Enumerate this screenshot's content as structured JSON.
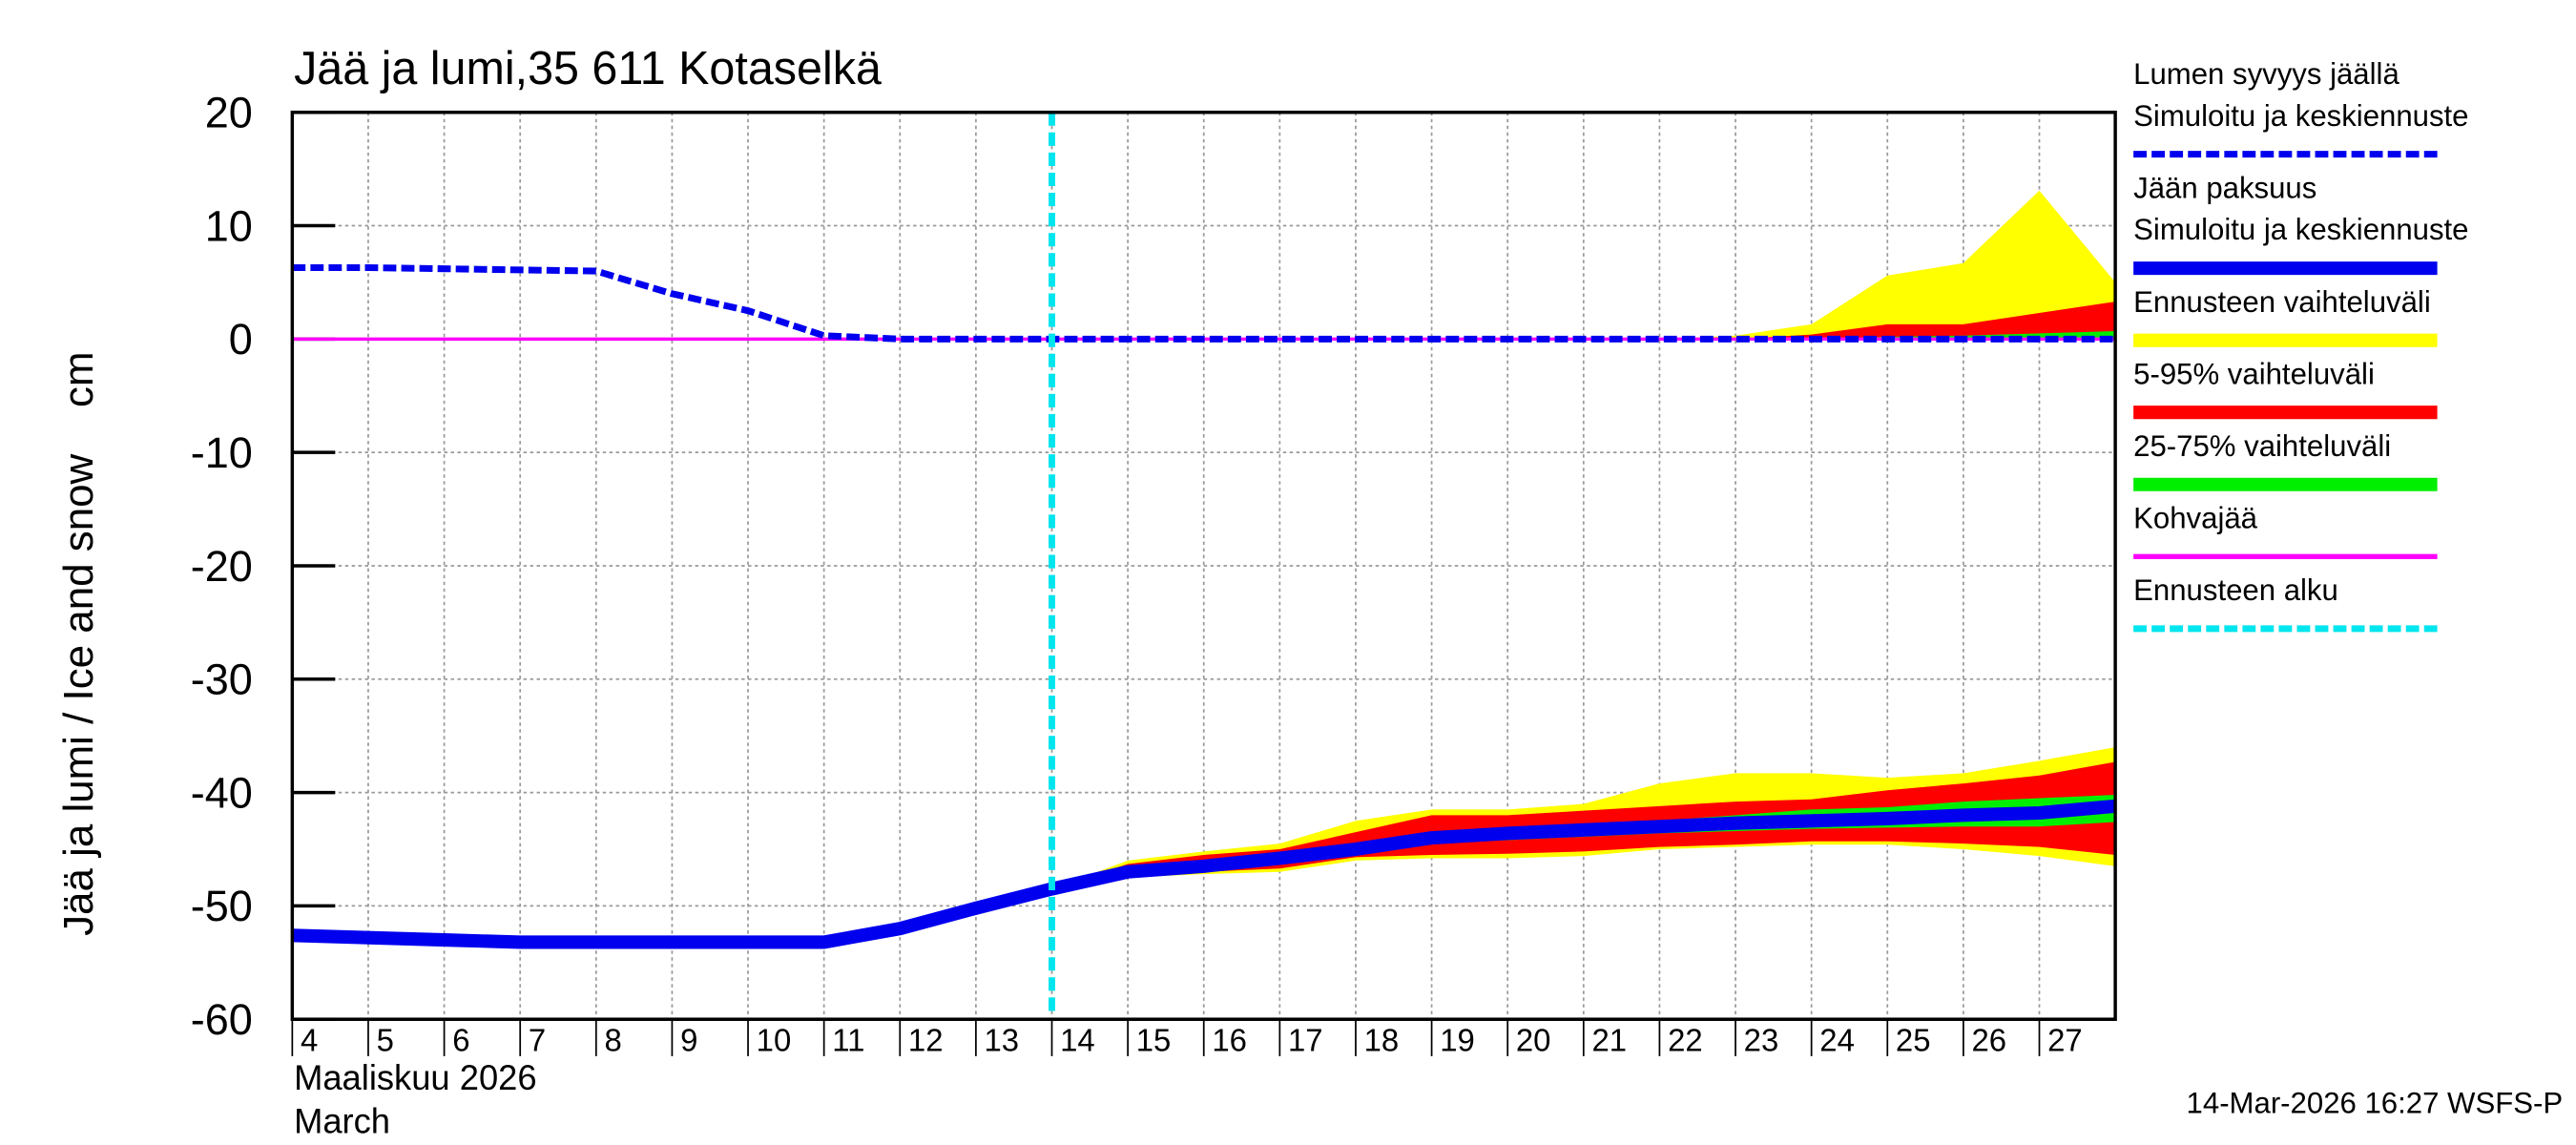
{
  "chart_data": {
    "type": "line",
    "title": "Jää ja lumi,35 611 Kotaselkä",
    "ylabel": "Jää ja lumi / Ice and snow    cm",
    "xlabel": [
      "Maaliskuu 2026",
      "March"
    ],
    "footer": "14-Mar-2026 16:27 WSFS-P",
    "xlim": [
      4,
      28
    ],
    "xticks": [
      4,
      5,
      6,
      7,
      8,
      9,
      10,
      11,
      12,
      13,
      14,
      15,
      16,
      17,
      18,
      19,
      20,
      21,
      22,
      23,
      24,
      25,
      26,
      27
    ],
    "ylim": [
      -60,
      20
    ],
    "yticks": [
      -60,
      -50,
      -40,
      -30,
      -20,
      -10,
      0,
      10,
      20
    ],
    "grid": true,
    "series": [
      {
        "name": [
          "Lumen syvyys jäällä",
          "Simuloitu ja keskiennuste"
        ],
        "color": "#0000ee",
        "dashed": true,
        "x": [
          4,
          5,
          6,
          7,
          8,
          9,
          10,
          11,
          12,
          13,
          14,
          15,
          16,
          17,
          18,
          19,
          20,
          21,
          22,
          23,
          24,
          25,
          26,
          27,
          28
        ],
        "values": [
          6.3,
          6.3,
          6.2,
          6.1,
          6.0,
          4.0,
          2.5,
          0.3,
          0,
          0,
          0,
          0,
          0,
          0,
          0,
          0,
          0,
          0,
          0,
          0,
          0,
          0,
          0,
          0,
          0
        ]
      },
      {
        "name": [
          "Jään paksuus",
          "Simuloitu ja keskiennuste"
        ],
        "color": "#0000ee",
        "dashed": false,
        "x": [
          4,
          5,
          6,
          7,
          8,
          9,
          10,
          11,
          12,
          13,
          14,
          15,
          16,
          17,
          18,
          19,
          20,
          21,
          22,
          23,
          24,
          25,
          26,
          27,
          28
        ],
        "values": [
          -52.6,
          -52.8,
          -53,
          -53.2,
          -53.2,
          -53.2,
          -53.2,
          -53.2,
          -52,
          -50.2,
          -48.5,
          -47,
          -46.5,
          -45.8,
          -45,
          -44,
          -43.6,
          -43.3,
          -43,
          -42.7,
          -42.5,
          -42.3,
          -42,
          -41.8,
          -41.2
        ]
      },
      {
        "name": "Ennusteen vaihteluväli",
        "color": "#ffff00",
        "ranges": [
          {
            "x": [
              14,
              15,
              16,
              17,
              18,
              19,
              20,
              21,
              22,
              23,
              24,
              25,
              26,
              27,
              28
            ],
            "upper": [
              -48.5,
              -46,
              -45.2,
              -44.5,
              -42.5,
              -41.5,
              -41.5,
              -41,
              -39.2,
              -38.3,
              -38.3,
              -38.7,
              -38.3,
              -37.2,
              -36
            ],
            "lower": [
              -48.5,
              -47.5,
              -47.2,
              -47,
              -46,
              -45.8,
              -45.8,
              -45.6,
              -45,
              -44.8,
              -44.6,
              -44.6,
              -45,
              -45.6,
              -46.5
            ]
          },
          {
            "x": [
              22,
              23,
              24,
              25,
              26,
              27,
              28
            ],
            "upper": [
              0,
              0.3,
              1.3,
              5.6,
              6.7,
              13.1,
              5
            ],
            "lower": [
              0,
              0,
              0,
              0,
              0,
              0,
              0
            ]
          }
        ]
      },
      {
        "name": "5-95% vaihteluväli",
        "color": "#ff0000",
        "ranges": [
          {
            "x": [
              14,
              15,
              16,
              17,
              18,
              19,
              20,
              21,
              22,
              23,
              24,
              25,
              26,
              27,
              28
            ],
            "upper": [
              -48.5,
              -46.3,
              -45.5,
              -45,
              -43.5,
              -42,
              -42,
              -41.6,
              -41.2,
              -40.8,
              -40.6,
              -39.8,
              -39.2,
              -38.5,
              -37.3
            ],
            "lower": [
              -48.5,
              -47.3,
              -47,
              -46.7,
              -45.7,
              -45.5,
              -45.4,
              -45.2,
              -44.8,
              -44.6,
              -44.3,
              -44.3,
              -44.5,
              -44.8,
              -45.5
            ]
          },
          {
            "x": [
              22,
              23,
              24,
              25,
              26,
              27,
              28
            ],
            "upper": [
              0,
              0,
              0.4,
              1.3,
              1.3,
              2.3,
              3.3
            ],
            "lower": [
              0,
              0,
              0,
              0,
              0,
              0,
              0
            ]
          }
        ]
      },
      {
        "name": "25-75% vaihteluväli",
        "color": "#00ee00",
        "ranges": [
          {
            "x": [
              14,
              15,
              16,
              17,
              18,
              19,
              20,
              21,
              22,
              23,
              24,
              25,
              26,
              27,
              28
            ],
            "upper": [
              -48.5,
              -46.8,
              -46,
              -45.3,
              -44.5,
              -43.5,
              -43.2,
              -42.8,
              -42.5,
              -42,
              -41.5,
              -41.3,
              -40.8,
              -40.5,
              -40.2
            ],
            "lower": [
              -48.5,
              -47.2,
              -46.8,
              -46.2,
              -45.3,
              -44.5,
              -44.2,
              -43.9,
              -43.6,
              -43.4,
              -43.2,
              -43.1,
              -43,
              -43,
              -42.6
            ]
          },
          {
            "x": [
              22,
              23,
              24,
              25,
              26,
              27,
              28
            ],
            "upper": [
              0,
              0,
              0,
              0.2,
              0.3,
              0.5,
              0.7
            ],
            "lower": [
              0,
              0,
              0,
              0,
              0,
              0,
              0
            ]
          }
        ]
      },
      {
        "name": "Kohvajää",
        "color": "#ff00ff",
        "dashed": false,
        "x": [
          4,
          28
        ],
        "values": [
          0,
          0
        ]
      },
      {
        "name": "Ennusteen alku",
        "color": "#00e5ee",
        "dashed": true,
        "x": [
          14
        ]
      }
    ]
  }
}
